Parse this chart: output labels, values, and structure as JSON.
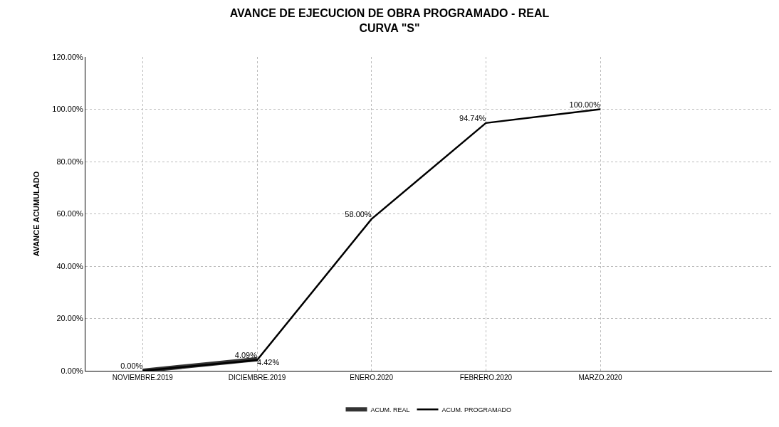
{
  "chart_data": {
    "type": "line",
    "title": "AVANCE DE EJECUCION DE OBRA PROGRAMADO - REAL\nCURVA \"S\"",
    "ylabel": "AVANCE ACUMULADO",
    "categories": [
      "NOVIEMBRE.2019",
      "DICIEMBRE.2019",
      "ENERO.2020",
      "FEBRERO.2020",
      "MARZO.2020",
      null
    ],
    "series": [
      {
        "name": "ACUM. REAL",
        "color": "#333333",
        "values": [
          0.0,
          4.42,
          null,
          null,
          null,
          null
        ],
        "value_labels": [
          "0.00%",
          "4.42%",
          null,
          null,
          null,
          null
        ]
      },
      {
        "name": "ACUM. PROGRAMADO",
        "color": "#000000",
        "values": [
          0.0,
          4.09,
          58.0,
          94.74,
          100.0,
          null
        ],
        "value_labels": [
          null,
          "4.09%",
          "58.00%",
          "94.74%",
          "100.00%",
          null
        ]
      }
    ],
    "ylim": [
      0,
      120
    ],
    "yticks": [
      {
        "value": 0,
        "label": "0.00%"
      },
      {
        "value": 20,
        "label": "20.00%"
      },
      {
        "value": 40,
        "label": "40.00%"
      },
      {
        "value": 60,
        "label": "60.00%"
      },
      {
        "value": 80,
        "label": "80.00%"
      },
      {
        "value": 100,
        "label": "100.00%"
      },
      {
        "value": 120,
        "label": "120.00%"
      }
    ],
    "grid": true,
    "legend": "bottom",
    "marker": "none",
    "line_style": "solid"
  }
}
